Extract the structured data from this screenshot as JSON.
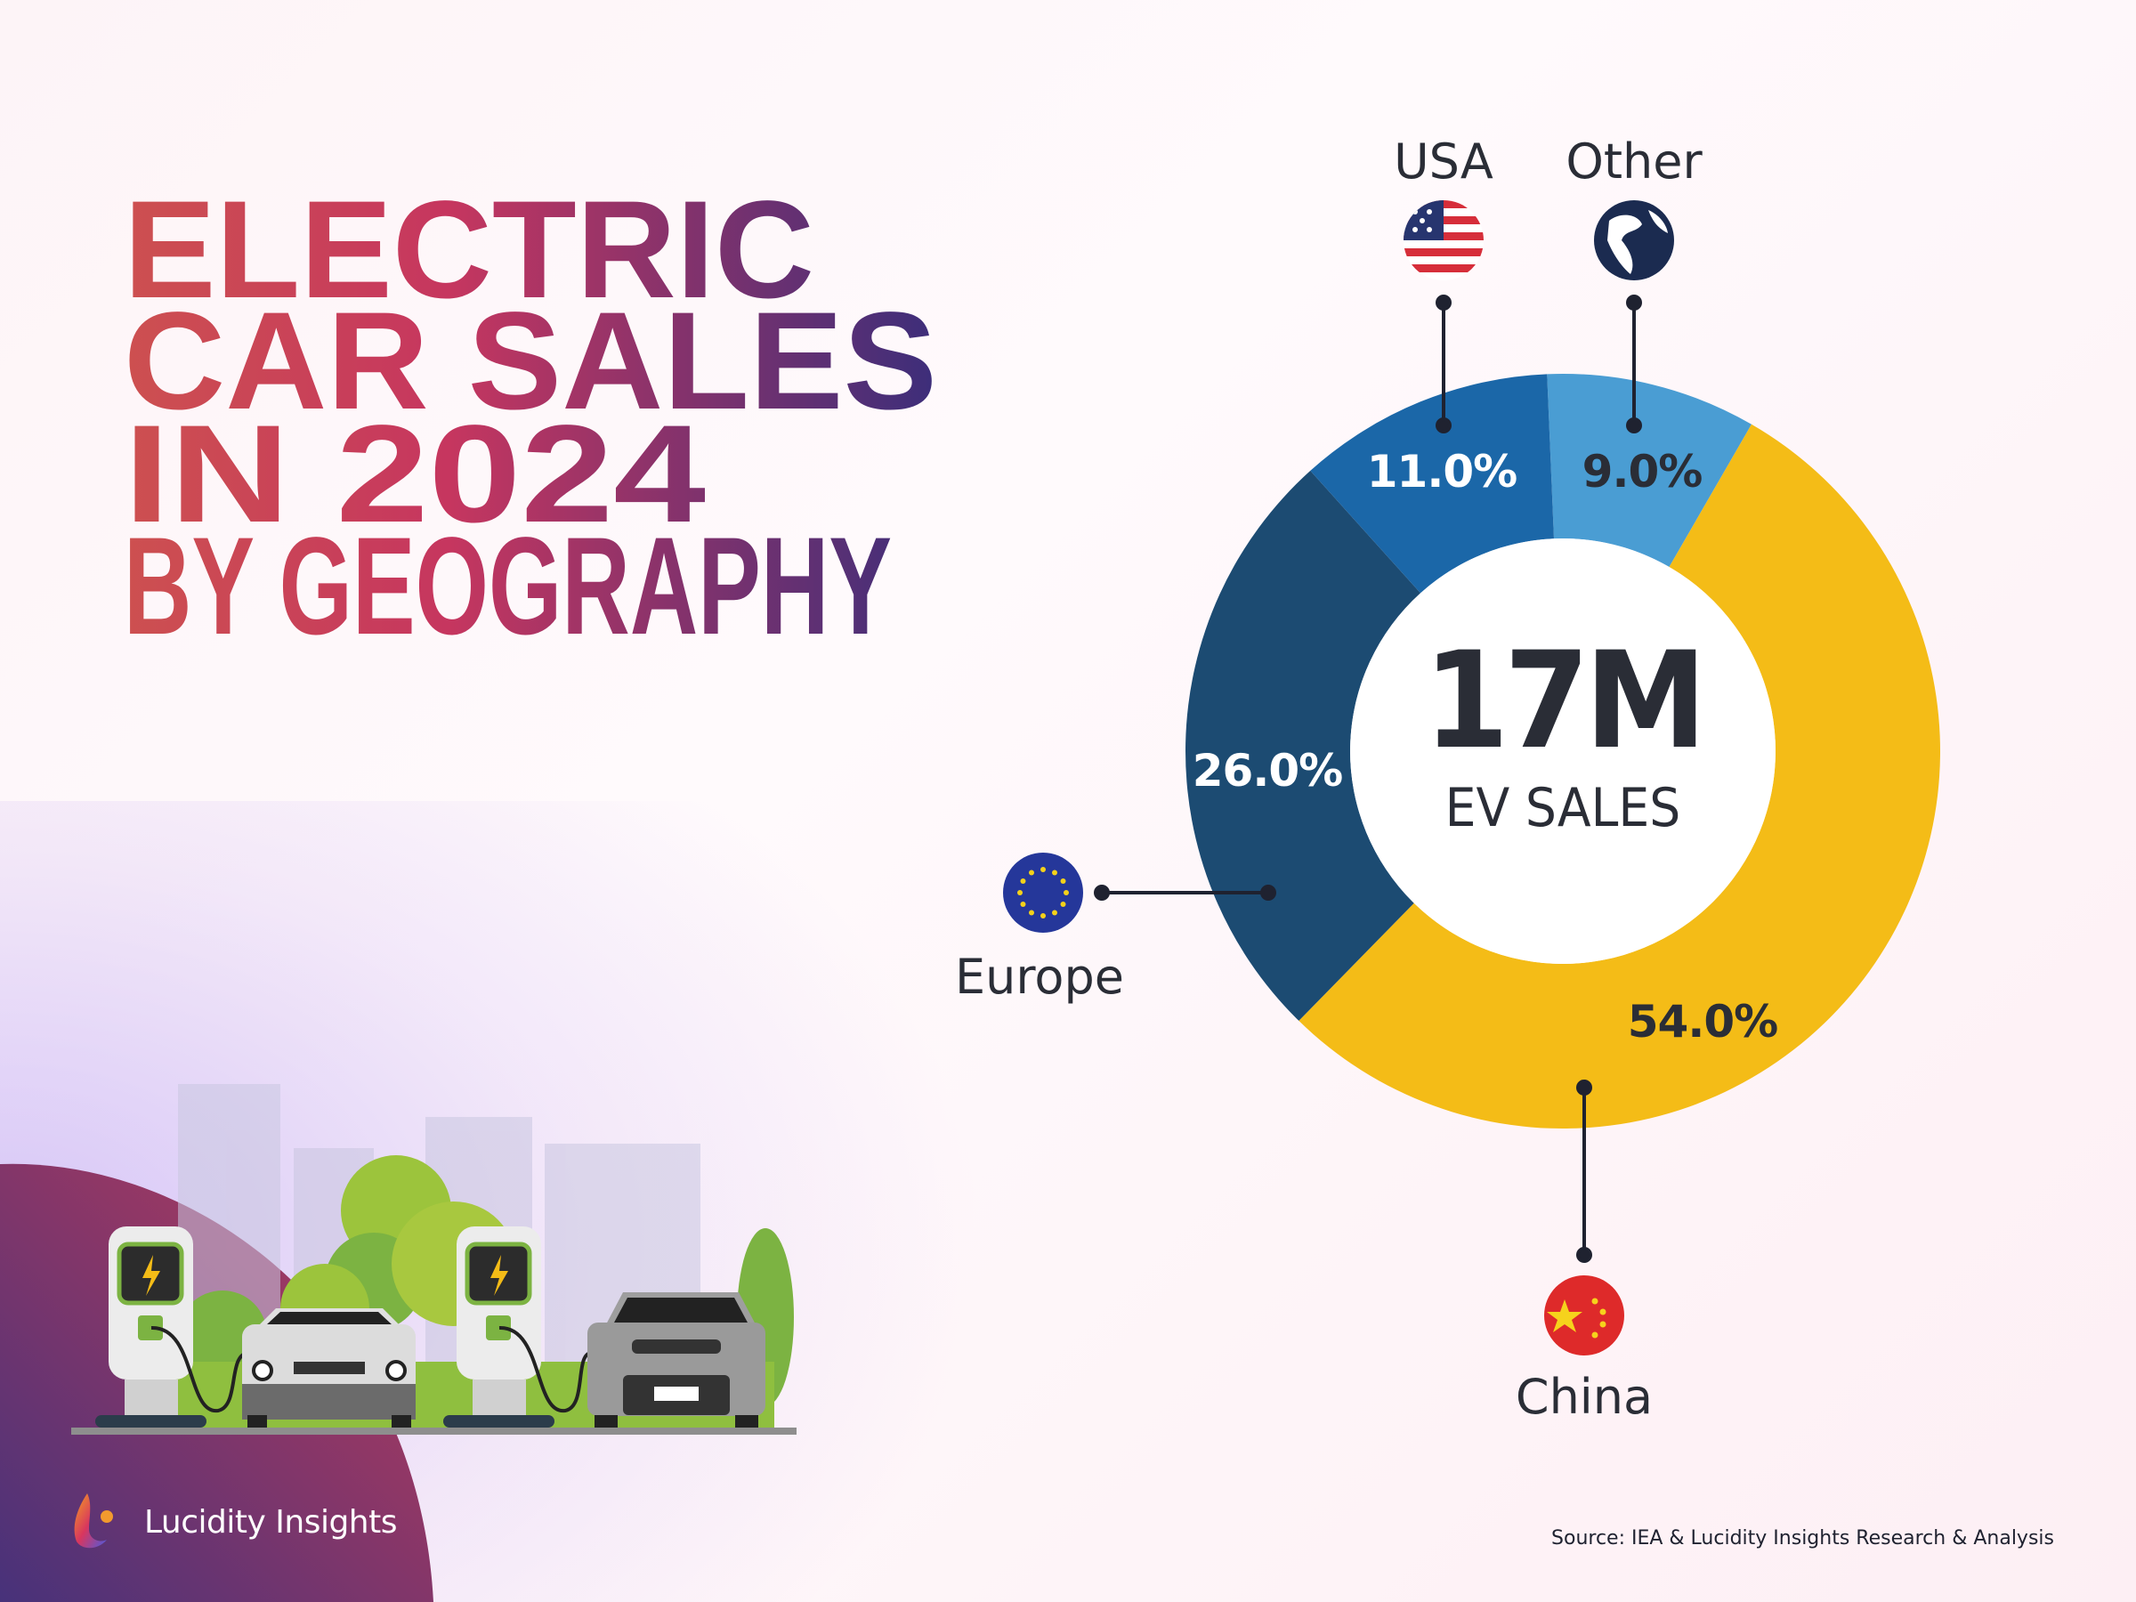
{
  "title": {
    "lines": [
      "ELECTRIC",
      "CAR SALES",
      "IN 2024",
      "BY GEOGRAPHY"
    ],
    "gradient": [
      "#cd5050",
      "#c6365f",
      "#3c2e7a"
    ]
  },
  "chart_data": {
    "type": "pie",
    "style": "donut",
    "center_value": "17M",
    "center_label": "EV SALES",
    "categories": [
      "Other",
      "China",
      "Europe",
      "USA"
    ],
    "values": [
      9.0,
      54.0,
      26.0,
      11.0
    ],
    "value_labels": [
      "9.0%",
      "54.0%",
      "26.0%",
      "11.0%"
    ],
    "colors": [
      "#4a9dd3",
      "#f4bc17",
      "#1c4b72",
      "#1b67a8"
    ],
    "label_colors": [
      "#2a2d36",
      "#2a2d36",
      "#ffffff",
      "#ffffff"
    ],
    "legend": "icons with leader lines"
  },
  "icons": {
    "USA": "usa-flag-icon",
    "Other": "globe-icon",
    "Europe": "eu-flag-icon",
    "China": "china-flag-icon"
  },
  "brand": {
    "name": "Lucidity Insights"
  },
  "source": "Source: IEA & Lucidity Insights Research & Analysis"
}
